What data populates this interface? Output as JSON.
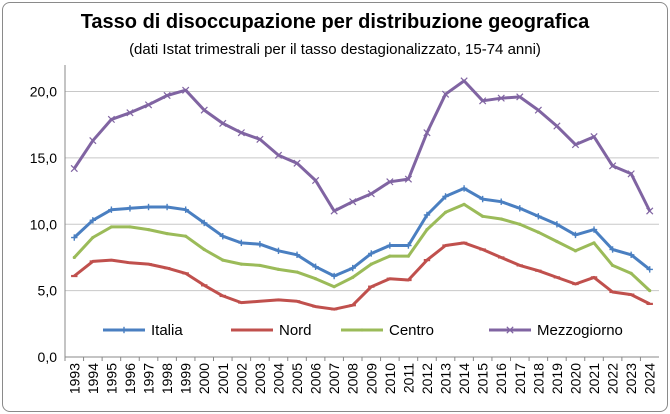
{
  "chart_data": {
    "type": "line",
    "title": "Tasso di disoccupazione per distribuzione geografica",
    "subtitle": "(dati Istat trimestrali  per il tasso destagionalizzato, 15-74 anni)",
    "xlabel": "",
    "ylabel": "",
    "ylim": [
      0,
      22
    ],
    "yticks": [
      "0,0",
      "5,0",
      "10,0",
      "15,0",
      "20,0"
    ],
    "ytick_values": [
      0,
      5,
      10,
      15,
      20
    ],
    "x_categories": [
      "1993",
      "1994",
      "1995",
      "1996",
      "1997",
      "1998",
      "1999",
      "2000",
      "2001",
      "2002",
      "2003",
      "2004",
      "2005",
      "2006",
      "2007",
      "2008",
      "2009",
      "2010",
      "2011",
      "2012",
      "2013",
      "2014",
      "2015",
      "2016",
      "2017",
      "2018",
      "2019",
      "2020",
      "2021",
      "2022",
      "2023",
      "2024"
    ],
    "grid": "horizontal",
    "legend_position": "bottom",
    "series": [
      {
        "name": "Italia",
        "color": "#4a7fc1",
        "marker": "plus",
        "values": [
          [
            1993,
            9.0
          ],
          [
            1994,
            10.3
          ],
          [
            1995,
            11.1
          ],
          [
            1996,
            11.2
          ],
          [
            1997,
            11.3
          ],
          [
            1998,
            11.3
          ],
          [
            1999,
            11.1
          ],
          [
            2000,
            10.1
          ],
          [
            2001,
            9.1
          ],
          [
            2002,
            8.6
          ],
          [
            2003,
            8.5
          ],
          [
            2004,
            8.0
          ],
          [
            2005,
            7.7
          ],
          [
            2006,
            6.8
          ],
          [
            2007,
            6.1
          ],
          [
            2008,
            6.7
          ],
          [
            2009,
            7.8
          ],
          [
            2010,
            8.4
          ],
          [
            2011,
            8.4
          ],
          [
            2012,
            10.7
          ],
          [
            2013,
            12.1
          ],
          [
            2014,
            12.7
          ],
          [
            2015,
            11.9
          ],
          [
            2016,
            11.7
          ],
          [
            2017,
            11.2
          ],
          [
            2018,
            10.6
          ],
          [
            2019,
            10.0
          ],
          [
            2020,
            9.2
          ],
          [
            2021,
            9.6
          ],
          [
            2022,
            8.1
          ],
          [
            2023,
            7.7
          ],
          [
            2024,
            6.6
          ]
        ]
      },
      {
        "name": "Nord",
        "color": "#c0504d",
        "marker": "dash",
        "values": [
          [
            1993,
            6.1
          ],
          [
            1994,
            7.2
          ],
          [
            1995,
            7.3
          ],
          [
            1996,
            7.1
          ],
          [
            1997,
            7.0
          ],
          [
            1998,
            6.7
          ],
          [
            1999,
            6.3
          ],
          [
            2000,
            5.4
          ],
          [
            2001,
            4.6
          ],
          [
            2002,
            4.1
          ],
          [
            2003,
            4.2
          ],
          [
            2004,
            4.3
          ],
          [
            2005,
            4.2
          ],
          [
            2006,
            3.8
          ],
          [
            2007,
            3.6
          ],
          [
            2008,
            3.9
          ],
          [
            2009,
            5.3
          ],
          [
            2010,
            5.9
          ],
          [
            2011,
            5.8
          ],
          [
            2012,
            7.3
          ],
          [
            2013,
            8.4
          ],
          [
            2014,
            8.6
          ],
          [
            2015,
            8.1
          ],
          [
            2016,
            7.5
          ],
          [
            2017,
            6.9
          ],
          [
            2018,
            6.5
          ],
          [
            2019,
            6.0
          ],
          [
            2020,
            5.5
          ],
          [
            2021,
            6.0
          ],
          [
            2022,
            4.9
          ],
          [
            2023,
            4.7
          ],
          [
            2024,
            4.0
          ]
        ]
      },
      {
        "name": "Centro",
        "color": "#9bbb59",
        "marker": "line",
        "values": [
          [
            1993,
            7.5
          ],
          [
            1994,
            9.0
          ],
          [
            1995,
            9.8
          ],
          [
            1996,
            9.8
          ],
          [
            1997,
            9.6
          ],
          [
            1998,
            9.3
          ],
          [
            1999,
            9.1
          ],
          [
            2000,
            8.1
          ],
          [
            2001,
            7.3
          ],
          [
            2002,
            7.0
          ],
          [
            2003,
            6.9
          ],
          [
            2004,
            6.6
          ],
          [
            2005,
            6.4
          ],
          [
            2006,
            5.9
          ],
          [
            2007,
            5.3
          ],
          [
            2008,
            6.0
          ],
          [
            2009,
            7.0
          ],
          [
            2010,
            7.6
          ],
          [
            2011,
            7.6
          ],
          [
            2012,
            9.6
          ],
          [
            2013,
            10.9
          ],
          [
            2014,
            11.5
          ],
          [
            2015,
            10.6
          ],
          [
            2016,
            10.4
          ],
          [
            2017,
            10.0
          ],
          [
            2018,
            9.4
          ],
          [
            2019,
            8.7
          ],
          [
            2020,
            8.0
          ],
          [
            2021,
            8.6
          ],
          [
            2022,
            6.9
          ],
          [
            2023,
            6.3
          ],
          [
            2024,
            5.0
          ]
        ]
      },
      {
        "name": "Mezzogiorno",
        "color": "#8064a2",
        "marker": "x",
        "values": [
          [
            1993,
            14.2
          ],
          [
            1994,
            16.3
          ],
          [
            1995,
            17.9
          ],
          [
            1996,
            18.4
          ],
          [
            1997,
            19.0
          ],
          [
            1998,
            19.7
          ],
          [
            1999,
            20.1
          ],
          [
            2000,
            18.6
          ],
          [
            2001,
            17.6
          ],
          [
            2002,
            16.9
          ],
          [
            2003,
            16.4
          ],
          [
            2004,
            15.2
          ],
          [
            2005,
            14.6
          ],
          [
            2006,
            13.3
          ],
          [
            2007,
            11.0
          ],
          [
            2008,
            11.7
          ],
          [
            2009,
            12.3
          ],
          [
            2010,
            13.2
          ],
          [
            2011,
            13.4
          ],
          [
            2012,
            16.9
          ],
          [
            2013,
            19.8
          ],
          [
            2014,
            20.8
          ],
          [
            2015,
            19.3
          ],
          [
            2016,
            19.5
          ],
          [
            2017,
            19.6
          ],
          [
            2018,
            18.6
          ],
          [
            2019,
            17.4
          ],
          [
            2020,
            16.0
          ],
          [
            2021,
            16.6
          ],
          [
            2022,
            14.4
          ],
          [
            2023,
            13.8
          ],
          [
            2024,
            11.0
          ]
        ]
      }
    ]
  }
}
